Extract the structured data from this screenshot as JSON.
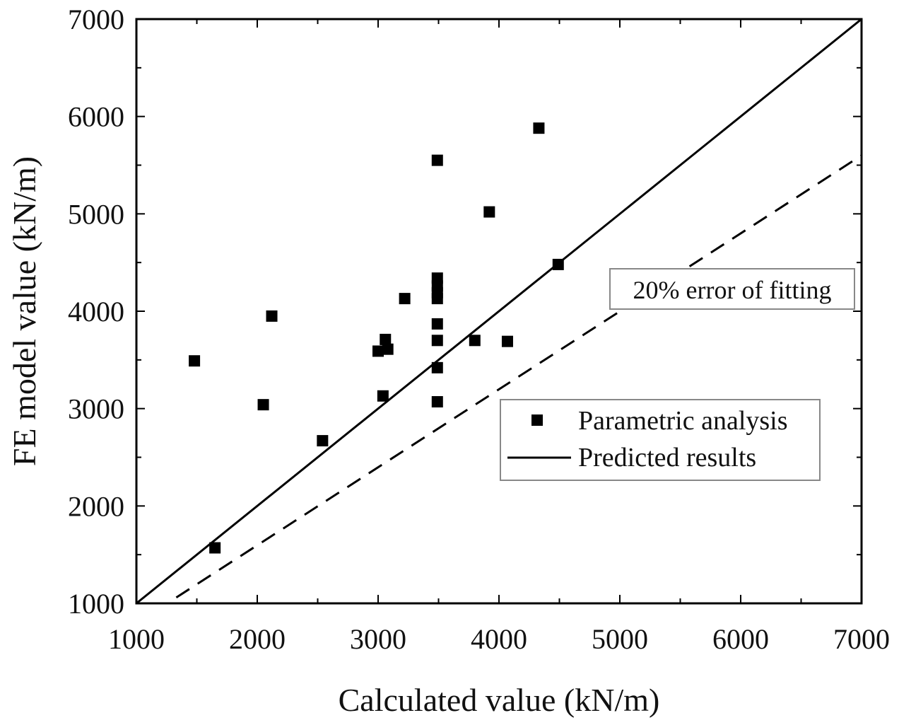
{
  "chart_data": {
    "type": "scatter",
    "title": "",
    "xlabel": "Calculated value (kN/m)",
    "ylabel": "FE model value (kN/m)",
    "xlim": [
      1000,
      7000
    ],
    "ylim": [
      1000,
      7000
    ],
    "xticks": [
      "1000",
      "2000",
      "3000",
      "4000",
      "5000",
      "6000",
      "7000"
    ],
    "yticks": [
      "1000",
      "2000",
      "3000",
      "4000",
      "5000",
      "6000",
      "7000"
    ],
    "grid": false,
    "legend_position": "lower-right",
    "series": [
      {
        "name": "Parametric analysis",
        "kind": "scatter",
        "marker": "square",
        "color": "#000000",
        "points": [
          [
            1480,
            3490
          ],
          [
            1650,
            1570
          ],
          [
            2050,
            3040
          ],
          [
            2120,
            3950
          ],
          [
            2540,
            2670
          ],
          [
            3000,
            3590
          ],
          [
            3040,
            3130
          ],
          [
            3060,
            3710
          ],
          [
            3080,
            3610
          ],
          [
            3220,
            4130
          ],
          [
            3490,
            5550
          ],
          [
            3490,
            4340
          ],
          [
            3490,
            4260
          ],
          [
            3490,
            4190
          ],
          [
            3490,
            4130
          ],
          [
            3490,
            3870
          ],
          [
            3490,
            3700
          ],
          [
            3490,
            3420
          ],
          [
            3490,
            3070
          ],
          [
            3800,
            3700
          ],
          [
            3920,
            5020
          ],
          [
            4070,
            3690
          ],
          [
            4330,
            5880
          ],
          [
            4490,
            4480
          ]
        ]
      },
      {
        "name": "Predicted results",
        "kind": "line",
        "style": "solid",
        "color": "#000000",
        "from": [
          1000,
          1000
        ],
        "to": [
          7000,
          7000
        ]
      },
      {
        "kind": "line",
        "style": "dashed",
        "color": "#000000",
        "from": [
          1330,
          1060
        ],
        "to": [
          7000,
          5600
        ]
      }
    ],
    "annotations": [
      {
        "text": "20% error of fitting"
      }
    ]
  }
}
